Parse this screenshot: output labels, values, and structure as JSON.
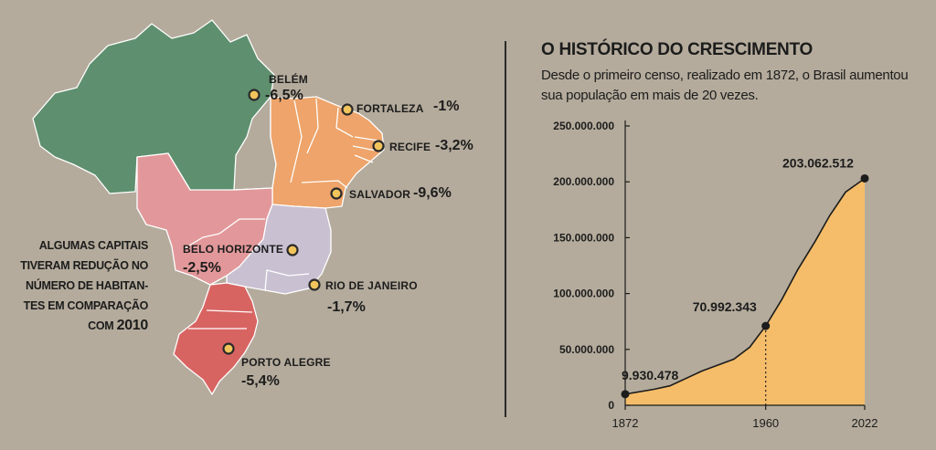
{
  "map": {
    "note_lines": [
      "ALGUMAS CAPITAIS",
      "TIVERAM REDUÇÃO NO",
      "NÚMERO DE HABITAN-",
      "TES EM COMPARAÇÃO"
    ],
    "note_last_prefix": "COM",
    "note_last_year": "2010",
    "colors": {
      "north": "#5e8f6e",
      "northeast": "#eea46a",
      "centerwest": "#e2989a",
      "southeast": "#c9c0d2",
      "south": "#d86462",
      "marker_fill": "#f2c45c"
    },
    "cities": [
      {
        "name": "BELÉM",
        "value": "-6,5%"
      },
      {
        "name": "FORTALEZA",
        "value": "-1%"
      },
      {
        "name": "RECIFE",
        "value": "-3,2%"
      },
      {
        "name": "SALVADOR",
        "value": "-9,6%"
      },
      {
        "name": "BELO HORIZONTE",
        "value": "-2,5%"
      },
      {
        "name": "RIO DE JANEIRO",
        "value": "-1,7%"
      },
      {
        "name": "PORTO ALEGRE",
        "value": "-5,4%"
      }
    ]
  },
  "chart_data": {
    "type": "area",
    "title": "O HISTÓRICO DO CRESCIMENTO",
    "subtitle": "Desde o primeiro censo, realizado em 1872, o Brasil aumentou sua população em mais de 20 vezes.",
    "x_ticks": [
      "1872",
      "1960",
      "2022"
    ],
    "y_ticks": [
      "0",
      "50.000.000",
      "100.000.000",
      "150.000.000",
      "200.000.000",
      "250.000.000"
    ],
    "xlim": [
      1872,
      2022
    ],
    "ylim": [
      0,
      250000000
    ],
    "fill_color": "#f5bd6a",
    "series": [
      {
        "x": [
          1872,
          1890,
          1900,
          1920,
          1940,
          1950,
          1960,
          1970,
          1980,
          1991,
          2000,
          2010,
          2022
        ],
        "y": [
          9930478,
          14333915,
          17438434,
          30635605,
          41236315,
          51944397,
          70992343,
          94508583,
          121150573,
          146917459,
          169590693,
          190755799,
          203062512
        ]
      }
    ],
    "annotations": [
      {
        "x": 1872,
        "y": 9930478,
        "label": "9.930.478"
      },
      {
        "x": 1960,
        "y": 70992343,
        "label": "70.992.343"
      },
      {
        "x": 2022,
        "y": 203062512,
        "label": "203.062.512"
      }
    ]
  }
}
